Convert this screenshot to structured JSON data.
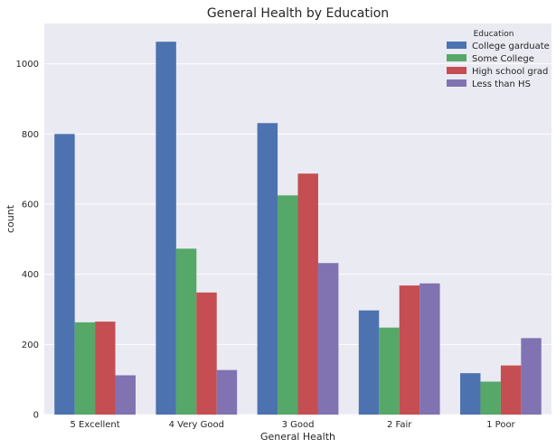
{
  "chart_data": {
    "type": "bar",
    "title": "General Health by Education",
    "xlabel": "General Health",
    "ylabel": "count",
    "categories": [
      "5 Excellent",
      "4 Very Good",
      "3 Good",
      "2 Fair",
      "1 Poor"
    ],
    "ylim": [
      0,
      1115
    ],
    "yticks": [
      0,
      200,
      400,
      600,
      800,
      1000
    ],
    "grid": true,
    "legend": {
      "title": "Education",
      "placement": "top-right"
    },
    "series": [
      {
        "name": "College garduate",
        "color": "#4c72b0",
        "values": [
          800,
          1063,
          831,
          297,
          118
        ]
      },
      {
        "name": "Some College",
        "color": "#55a868",
        "values": [
          263,
          473,
          625,
          248,
          94
        ]
      },
      {
        "name": "High school grad",
        "color": "#c44e52",
        "values": [
          265,
          348,
          687,
          368,
          140
        ]
      },
      {
        "name": "Less than HS",
        "color": "#8172b2",
        "values": [
          112,
          127,
          432,
          374,
          218
        ]
      }
    ]
  }
}
